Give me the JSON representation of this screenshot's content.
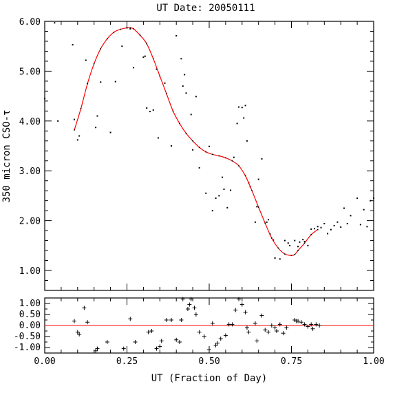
{
  "chart_data": [
    {
      "type": "scatter",
      "title": "UT Date: 20050111",
      "xlabel": "",
      "ylabel": "350 micron CSO-τ",
      "xlim": [
        0.0,
        1.0
      ],
      "ylim": [
        0.6,
        6.0
      ],
      "y_ticks": [
        "1.00",
        "2.00",
        "3.00",
        "4.00",
        "5.00",
        "6.00"
      ],
      "series": [
        {
          "kind": "points",
          "color": "#000000",
          "x": [
            0.0,
            0.03,
            0.04,
            0.085,
            0.09,
            0.1,
            0.105,
            0.125,
            0.13,
            0.155,
            0.16,
            0.17,
            0.2,
            0.215,
            0.235,
            0.25,
            0.26,
            0.27,
            0.3,
            0.305,
            0.31,
            0.32,
            0.33,
            0.34,
            0.345,
            0.365,
            0.385,
            0.4,
            0.415,
            0.42,
            0.425,
            0.43,
            0.445,
            0.45,
            0.46,
            0.47,
            0.49,
            0.5,
            0.51,
            0.52,
            0.53,
            0.54,
            0.545,
            0.555,
            0.565,
            0.575,
            0.585,
            0.59,
            0.6,
            0.605,
            0.61,
            0.615,
            0.62,
            0.625,
            0.64,
            0.645,
            0.65,
            0.66,
            0.675,
            0.68,
            0.685,
            0.695,
            0.7,
            0.715,
            0.73,
            0.74,
            0.745,
            0.76,
            0.77,
            0.775,
            0.785,
            0.79,
            0.8,
            0.81,
            0.82,
            0.83,
            0.84,
            0.85,
            0.86,
            0.87,
            0.88,
            0.89,
            0.9,
            0.91,
            0.92,
            0.93,
            0.95,
            0.96,
            0.97,
            0.98,
            0.99,
            1.0
          ],
          "y": [
            4.45,
            5.97,
            4.0,
            5.53,
            4.03,
            3.62,
            3.7,
            5.22,
            4.75,
            3.87,
            4.1,
            4.78,
            3.77,
            4.79,
            5.5,
            5.87,
            5.85,
            5.07,
            5.28,
            5.3,
            4.26,
            4.19,
            4.22,
            5.04,
            3.66,
            4.76,
            3.5,
            5.71,
            5.25,
            4.7,
            4.93,
            4.56,
            4.13,
            3.42,
            4.49,
            3.06,
            2.55,
            3.49,
            2.2,
            2.45,
            2.5,
            2.87,
            2.63,
            2.26,
            2.61,
            3.27,
            3.95,
            4.28,
            4.27,
            4.06,
            4.31,
            3.6,
            2.76,
            2.68,
            1.97,
            2.28,
            2.83,
            3.24,
            1.97,
            2.02,
            1.73,
            1.61,
            1.25,
            1.23,
            1.6,
            1.55,
            1.5,
            1.6,
            1.48,
            1.57,
            1.62,
            1.58,
            1.5,
            1.83,
            1.84,
            1.88,
            1.86,
            1.94,
            1.74,
            1.82,
            1.9,
            1.97,
            1.87,
            2.25,
            1.94,
            2.1,
            2.45,
            1.92,
            2.22,
            1.88,
            2.4,
            2.45
          ]
        },
        {
          "kind": "fit",
          "color": "#ff0000",
          "x": [
            0.09,
            0.11,
            0.13,
            0.15,
            0.17,
            0.19,
            0.21,
            0.23,
            0.25,
            0.26,
            0.27,
            0.29,
            0.31,
            0.33,
            0.35,
            0.37,
            0.39,
            0.41,
            0.43,
            0.45,
            0.47,
            0.49,
            0.51,
            0.53,
            0.55,
            0.57,
            0.59,
            0.61,
            0.63,
            0.65,
            0.67,
            0.69,
            0.71,
            0.73,
            0.75,
            0.76,
            0.77,
            0.79,
            0.81,
            0.83
          ],
          "y": [
            3.82,
            4.25,
            4.75,
            5.15,
            5.45,
            5.65,
            5.78,
            5.84,
            5.87,
            5.87,
            5.85,
            5.72,
            5.55,
            5.25,
            4.9,
            4.55,
            4.2,
            3.95,
            3.75,
            3.6,
            3.47,
            3.38,
            3.33,
            3.3,
            3.26,
            3.2,
            3.1,
            2.9,
            2.6,
            2.27,
            1.95,
            1.65,
            1.45,
            1.33,
            1.3,
            1.32,
            1.4,
            1.55,
            1.72,
            1.82
          ]
        }
      ]
    },
    {
      "type": "scatter",
      "xlabel": "UT (Fraction of Day)",
      "ylabel": "",
      "xlim": [
        0.0,
        1.0
      ],
      "ylim": [
        -1.25,
        1.25
      ],
      "x_ticks": [
        "0.00",
        "0.25",
        "0.50",
        "0.75",
        "1.00"
      ],
      "y_ticks": [
        "1.00",
        "0.50",
        "0.00",
        "-0.50",
        "-1.00"
      ],
      "zero_line_color": "#ff0000",
      "residuals": {
        "marker": "plus",
        "x": [
          0.09,
          0.1,
          0.105,
          0.12,
          0.13,
          0.155,
          0.16,
          0.19,
          0.24,
          0.26,
          0.275,
          0.315,
          0.325,
          0.34,
          0.35,
          0.355,
          0.37,
          0.385,
          0.4,
          0.41,
          0.415,
          0.42,
          0.435,
          0.44,
          0.445,
          0.455,
          0.46,
          0.47,
          0.485,
          0.5,
          0.51,
          0.52,
          0.525,
          0.535,
          0.55,
          0.56,
          0.57,
          0.58,
          0.59,
          0.6,
          0.61,
          0.615,
          0.62,
          0.64,
          0.645,
          0.66,
          0.67,
          0.68,
          0.69,
          0.7,
          0.705,
          0.715,
          0.725,
          0.735,
          0.76,
          0.765,
          0.77,
          0.78,
          0.79,
          0.8,
          0.81,
          0.815,
          0.825,
          0.835
        ],
        "y": [
          0.2,
          -0.3,
          -0.4,
          0.8,
          0.15,
          -1.15,
          -1.05,
          -0.75,
          -1.05,
          0.3,
          -0.75,
          -0.3,
          -0.25,
          -1.05,
          -0.95,
          -0.7,
          0.25,
          0.25,
          -0.65,
          -0.75,
          0.25,
          1.2,
          0.75,
          0.95,
          1.2,
          0.8,
          0.5,
          -0.3,
          -0.5,
          -1.1,
          0.1,
          -0.9,
          -0.8,
          -0.6,
          -0.45,
          0.05,
          0.05,
          0.7,
          1.2,
          0.95,
          0.6,
          -0.1,
          -0.3,
          0.1,
          -0.7,
          0.45,
          -0.2,
          -0.3,
          0.0,
          -0.1,
          -0.25,
          0.05,
          -0.35,
          -0.1,
          0.25,
          0.2,
          0.2,
          0.15,
          0.05,
          -0.05,
          0.05,
          -0.15,
          0.05,
          0.0
        ]
      }
    }
  ]
}
